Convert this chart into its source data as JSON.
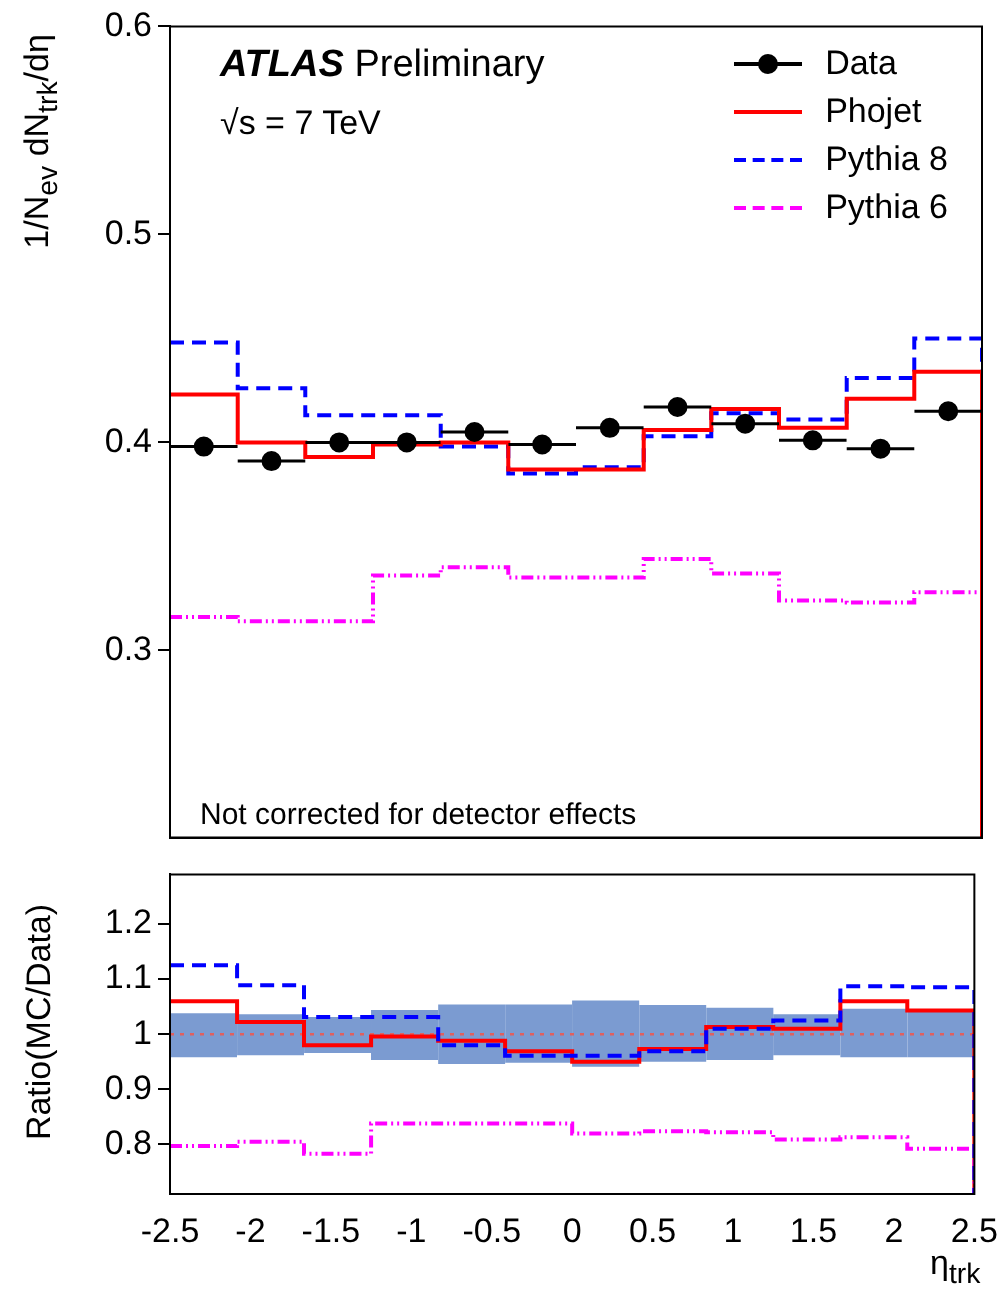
{
  "chart_data": [
    {
      "type": "histogram",
      "ylabel": "1/N$_{ev}$ dN$_{trk}$/dη",
      "annotations": [
        "ATLAS Preliminary",
        "√s = 7 TeV",
        "Not corrected for detector effects"
      ],
      "bins": [
        -2.5,
        -2.083,
        -1.667,
        -1.25,
        -0.833,
        -0.417,
        0,
        0.417,
        0.833,
        1.25,
        1.667,
        2.083,
        2.5
      ],
      "xlim": [
        -2.5,
        2.5
      ],
      "xticks": [
        -2.5,
        -2,
        -1.5,
        -1,
        -0.5,
        0,
        0.5,
        1,
        1.5,
        2,
        2.5
      ],
      "ylim": [
        0.21,
        0.6
      ],
      "yticks": [
        0.3,
        0.4,
        0.5,
        0.6
      ],
      "tick_labels": "y",
      "legend": "top right",
      "series": [
        {
          "name": "Data",
          "type": "scatter",
          "color": "#000000",
          "marker": "circle",
          "x": [
            -2.292,
            -1.875,
            -1.458,
            -1.042,
            -0.625,
            -0.208,
            0.208,
            0.625,
            1.042,
            1.458,
            1.875,
            2.292
          ],
          "values": [
            0.398,
            0.391,
            0.4,
            0.4,
            0.405,
            0.399,
            0.407,
            0.417,
            0.409,
            0.401,
            0.397,
            0.415
          ],
          "xerrors": [
            0.208,
            0.208,
            0.208,
            0.208,
            0.208,
            0.208,
            0.208,
            0.208,
            0.208,
            0.208,
            0.208,
            0.208
          ]
        },
        {
          "name": "Phojet",
          "color": "#ff0000",
          "line_style": "solid",
          "values": [
            0.423,
            0.4,
            0.393,
            0.399,
            0.4,
            0.387,
            0.387,
            0.406,
            0.416,
            0.407,
            0.421,
            0.434
          ]
        },
        {
          "name": "Pythia 8",
          "color": "#0000ff",
          "line_style": "dashed",
          "values": [
            0.448,
            0.426,
            0.413,
            0.413,
            0.398,
            0.385,
            0.388,
            0.403,
            0.414,
            0.411,
            0.431,
            0.45
          ]
        },
        {
          "name": "Pythia 6",
          "color": "#ff00ff",
          "line_style": "dotted",
          "values": [
            0.316,
            0.314,
            0.314,
            0.336,
            0.34,
            0.335,
            0.335,
            0.344,
            0.337,
            0.324,
            0.323,
            0.328
          ]
        }
      ]
    },
    {
      "type": "histogram",
      "ylabel": "Ratio(MC/Data)",
      "xlabel": "η$_{trk}$",
      "bins": [
        -2.5,
        -2.083,
        -1.667,
        -1.25,
        -0.833,
        -0.417,
        0,
        0.417,
        0.833,
        1.25,
        1.667,
        2.083,
        2.5
      ],
      "xlim": [
        -2.5,
        2.5
      ],
      "xticks": [
        -2.5,
        -2,
        -1.5,
        -1,
        -0.5,
        0,
        0.5,
        1,
        1.5,
        2,
        2.5
      ],
      "ylim": [
        0.71,
        1.29
      ],
      "yticks": [
        0.8,
        0.9,
        1,
        1.1,
        1.2
      ],
      "ref_lines": [
        {
          "axis": "y",
          "value": 1,
          "color": "#e06060",
          "line_style": "dotted"
        }
      ],
      "series": [
        {
          "type": "bar",
          "color": "#7b9bd1",
          "x": [
            -2.292,
            -1.875,
            -1.458,
            -1.042,
            -0.625,
            -0.208,
            0.208,
            0.625,
            1.042,
            1.458,
            1.875,
            2.292
          ],
          "base": [
            0.958,
            0.962,
            0.966,
            0.953,
            0.946,
            0.948,
            0.941,
            0.95,
            0.953,
            0.962,
            0.958,
            0.958
          ],
          "values": [
            0.08,
            0.074,
            0.065,
            0.091,
            0.108,
            0.106,
            0.12,
            0.103,
            0.095,
            0.074,
            0.088,
            0.086
          ]
        },
        {
          "color": "#0000ff",
          "line_style": "dashed",
          "values": [
            1.125,
            1.089,
            1.031,
            1.031,
            0.98,
            0.961,
            0.961,
            0.969,
            1.01,
            1.025,
            1.087,
            1.085
          ]
        },
        {
          "color": "#ff00ff",
          "line_style": "dotted",
          "values": [
            0.797,
            0.805,
            0.783,
            0.838,
            0.838,
            0.838,
            0.82,
            0.824,
            0.822,
            0.809,
            0.813,
            0.792
          ]
        },
        {
          "color": "#ff0000",
          "line_style": "solid",
          "values": [
            1.06,
            1.022,
            0.98,
            0.996,
            0.988,
            0.969,
            0.95,
            0.973,
            1.013,
            1.01,
            1.06,
            1.043
          ]
        }
      ]
    }
  ]
}
